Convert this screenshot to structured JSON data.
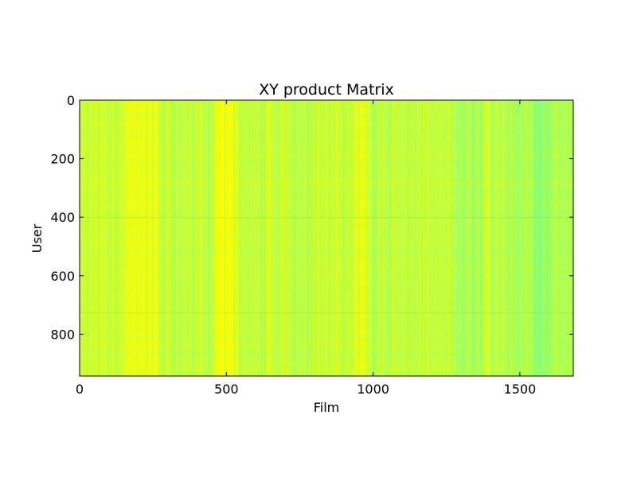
{
  "chart_data": {
    "type": "heatmap",
    "title": "XY product Matrix",
    "xlabel": "Film",
    "ylabel": "User",
    "xlim": [
      0,
      1682
    ],
    "ylim": [
      943,
      0
    ],
    "x_ticks": [
      0,
      500,
      1000,
      1500
    ],
    "y_ticks": [
      0,
      200,
      400,
      600,
      800
    ],
    "grid": false,
    "colors": {
      "high": "#ffff00",
      "mid_high": "#ccff33",
      "mid": "#b3ff4d",
      "low": "#80ff80"
    },
    "column_bands": [
      {
        "x": [
          0,
          30
        ],
        "level": 0.55
      },
      {
        "x": [
          30,
          150
        ],
        "level": 0.6
      },
      {
        "x": [
          150,
          270
        ],
        "level": 0.8
      },
      {
        "x": [
          270,
          440
        ],
        "level": 0.55
      },
      {
        "x": [
          440,
          460
        ],
        "level": 0.4
      },
      {
        "x": [
          460,
          540
        ],
        "level": 0.85
      },
      {
        "x": [
          540,
          640
        ],
        "level": 0.5
      },
      {
        "x": [
          640,
          940
        ],
        "level": 0.55
      },
      {
        "x": [
          940,
          990
        ],
        "level": 0.75
      },
      {
        "x": [
          990,
          1280
        ],
        "level": 0.5
      },
      {
        "x": [
          1280,
          1380
        ],
        "level": 0.35
      },
      {
        "x": [
          1380,
          1450
        ],
        "level": 0.55
      },
      {
        "x": [
          1450,
          1540
        ],
        "level": 0.4
      },
      {
        "x": [
          1540,
          1600
        ],
        "level": 0.15
      },
      {
        "x": [
          1600,
          1682
        ],
        "level": 0.4
      }
    ],
    "row_lines": [
      {
        "y": 400,
        "level": -0.25
      },
      {
        "y": 725,
        "level": -0.15
      }
    ]
  }
}
